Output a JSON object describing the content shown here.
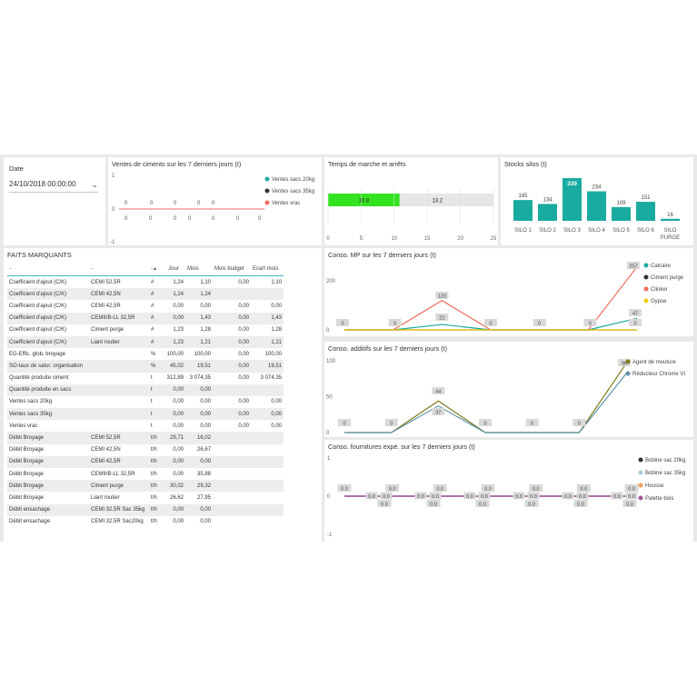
{
  "colors": {
    "teal": "#1aaba0",
    "dark": "#333333",
    "red": "#f06b5f",
    "yellow": "#f2c811",
    "olive": "#7d7b1c",
    "blue": "#5f93ab",
    "lightblue": "#a6c8da",
    "orange": "#f4a15c",
    "purple": "#a05a9a",
    "green": "#33e320"
  },
  "date_slicer": {
    "label": "Date",
    "value": "24/10/2018 00:00:00",
    "icon": "chevron-down-icon"
  },
  "ventes": {
    "title": "Ventes de ciments sur les 7 derniers jours (t)",
    "y_ticks": [
      "1",
      "0",
      "-1"
    ],
    "top_labels": [
      "0",
      "0",
      "0",
      "0",
      "0"
    ],
    "bottom_labels": [
      "0",
      "0",
      "0",
      "0",
      "0",
      "0",
      "0"
    ],
    "legend": [
      "Ventes sacs 20kg",
      "Ventes sacs 35kg",
      "Ventes vrac"
    ]
  },
  "temps": {
    "title": "Temps de marche et arrêts",
    "chart_data": {
      "type": "bar",
      "orientation": "horizontal",
      "values": [
        10.8,
        13.2
      ],
      "xlim": [
        0,
        25
      ],
      "x_ticks": [
        "0",
        "5",
        "10",
        "15",
        "20",
        "25"
      ],
      "labels": [
        "10.8",
        "13.2"
      ]
    }
  },
  "stocks": {
    "title": "Stocks silos (t)",
    "chart_data": {
      "type": "bar",
      "categories": [
        "SILO 1",
        "SILO 2",
        "SILO 3",
        "SILO 4",
        "SILO 5",
        "SILO 6",
        "SILO PURGE"
      ],
      "values": [
        165,
        134,
        339,
        234,
        109,
        151,
        16
      ],
      "labels": [
        "165",
        "134",
        "339",
        "234",
        "109",
        "151",
        "16"
      ]
    }
  },
  "faits": {
    "title": "FAITS MARQUANTS",
    "headers": [
      "-",
      "-",
      "-",
      "Jour",
      "Mois",
      "Mois budget",
      "Ecart mois"
    ],
    "rows": [
      [
        "Coefficient d'ajout (C/K)",
        "CEMI 52,5R",
        "#",
        "1,24",
        "1,10",
        "0,00",
        "1,10"
      ],
      [
        "Coefficient d'ajout (C/K)",
        "CEMI 42,5N",
        "#",
        "1,24",
        "1,24",
        "",
        ""
      ],
      [
        "Coefficient d'ajout (C/K)",
        "CEMI 42,5R",
        "#",
        "0,00",
        "0,00",
        "0,00",
        "0,00"
      ],
      [
        "Coefficient d'ajout (C/K)",
        "CEMII/B-LL 32,5R",
        "#",
        "0,00",
        "1,43",
        "0,00",
        "1,43"
      ],
      [
        "Coefficient d'ajout (C/K)",
        "Ciment purge",
        "#",
        "1,23",
        "1,28",
        "0,00",
        "1,28"
      ],
      [
        "Coefficient d'ajout (C/K)",
        "Liant routier",
        "#",
        "1,23",
        "1,21",
        "0,00",
        "1,21"
      ],
      [
        "EG-Effic. glob. broyage",
        "",
        "%",
        "100,00",
        "100,00",
        "0,00",
        "100,00"
      ],
      [
        "SO-taux de satur. organisation",
        "",
        "%",
        "45,02",
        "19,51",
        "0,00",
        "19,51"
      ],
      [
        "Quantité produite ciment",
        "",
        "t",
        "312,89",
        "3 074,35",
        "0,00",
        "3 074,35"
      ],
      [
        "Quantité produite en sacs",
        "",
        "t",
        "0,00",
        "0,00",
        "",
        ""
      ],
      [
        "Ventes sacs 20kg",
        "",
        "t",
        "0,00",
        "0,00",
        "0,00",
        "0,00"
      ],
      [
        "Ventes sacs 35kg",
        "",
        "t",
        "0,00",
        "0,00",
        "0,00",
        "0,00"
      ],
      [
        "Ventes vrac",
        "",
        "t",
        "0,00",
        "0,00",
        "0,00",
        "0,00"
      ],
      [
        "Débit Broyage",
        "CEMI 52,5R",
        "t/h",
        "29,71",
        "16,02",
        "",
        ""
      ],
      [
        "Débit Broyage",
        "CEMI 42,5N",
        "t/h",
        "0,00",
        "26,67",
        "",
        ""
      ],
      [
        "Débit Broyage",
        "CEMI 42,5R",
        "t/h",
        "0,00",
        "0,00",
        "",
        ""
      ],
      [
        "Débit Broyage",
        "CEMII/B-LL 32,5R",
        "t/h",
        "0,00",
        "35,88",
        "",
        ""
      ],
      [
        "Débit Broyage",
        "Ciment purge",
        "t/h",
        "30,02",
        "29,32",
        "",
        ""
      ],
      [
        "Débit Broyage",
        "Liant routier",
        "t/h",
        "26,62",
        "27,95",
        "",
        ""
      ],
      [
        "Débit ensachage",
        "CEMI 32,5R Sac 35kg",
        "t/h",
        "0,00",
        "0,00",
        "",
        ""
      ],
      [
        "Débit ensachage",
        "CEMI 32,5R Sac20kg",
        "t/h",
        "0,00",
        "0,00",
        "",
        ""
      ]
    ]
  },
  "mp": {
    "title": "Conso. MP sur les 7 derniers jours (t)",
    "y_ticks": [
      "200",
      "0"
    ],
    "legend": [
      "Calcaire",
      "Ciment purge",
      "Clinker",
      "Gypse"
    ],
    "chart_data": {
      "type": "line",
      "series": [
        {
          "name": "Calcaire",
          "values": [
            0,
            0,
            22,
            0,
            0,
            0,
            47
          ]
        },
        {
          "name": "Ciment purge",
          "values": [
            0,
            0,
            0,
            0,
            0,
            0,
            0
          ]
        },
        {
          "name": "Clinker",
          "values": [
            0,
            0,
            120,
            0,
            0,
            0,
            257
          ]
        },
        {
          "name": "Gypse",
          "values": [
            0,
            0,
            0,
            0,
            0,
            0,
            0
          ]
        }
      ],
      "ylim": [
        0,
        260
      ]
    },
    "labels": [
      "0",
      "0",
      "120",
      "22",
      "0",
      "0",
      "0",
      "257",
      "47",
      "0"
    ]
  },
  "additifs": {
    "title": "Conso. additifs sur les 7 derniers jours (t)",
    "y_ticks": [
      "100",
      "50",
      "0"
    ],
    "legend": [
      "Agent de mouture",
      "Réducteur Chrome VI"
    ],
    "chart_data": {
      "type": "line",
      "series": [
        {
          "name": "Agent de mouture",
          "values": [
            0,
            0,
            44,
            0,
            0,
            0,
            96
          ]
        },
        {
          "name": "Réducteur Chrome VI",
          "values": [
            0,
            0,
            37,
            0,
            0,
            0,
            82
          ]
        }
      ],
      "ylim": [
        0,
        100
      ]
    },
    "labels": [
      "0",
      "0",
      "44",
      "37",
      "0",
      "0",
      "0",
      "96"
    ]
  },
  "fournitures": {
    "title": "Conso. fournitures expé. sur les 7 derniers jours (t)",
    "y_ticks": [
      "1",
      "0",
      "-1"
    ],
    "legend": [
      "Bobine sac 20kg",
      "Bobine sac 35kg",
      "Housse",
      "Palette bois"
    ],
    "chart_data": {
      "type": "line",
      "series": [
        {
          "name": "Bobine sac 20kg",
          "values": [
            0,
            0,
            0,
            0,
            0,
            0,
            0
          ]
        },
        {
          "name": "Bobine sac 35kg",
          "values": [
            0,
            0,
            0,
            0,
            0,
            0,
            0
          ]
        },
        {
          "name": "Housse",
          "values": [
            0,
            0,
            0,
            0,
            0,
            0,
            0
          ]
        },
        {
          "name": "Palette bois",
          "values": [
            0,
            0,
            0,
            0,
            0,
            0,
            0
          ]
        }
      ],
      "ylim": [
        -1,
        1
      ]
    },
    "top_labels": [
      "0.0",
      "0.0",
      "0.0",
      "0.0",
      "0.0",
      "0.0",
      "0.0"
    ],
    "mid_labels": [
      "0.0",
      "0.0",
      "0.0",
      "0.0",
      "0.0",
      "0.0",
      "0.0",
      "0.0",
      "0.0",
      "0.0",
      "0.0",
      "0.0"
    ],
    "bottom_labels": [
      "0.0",
      "0.0",
      "0.0",
      "0.0",
      "0.0",
      "0.0"
    ]
  }
}
